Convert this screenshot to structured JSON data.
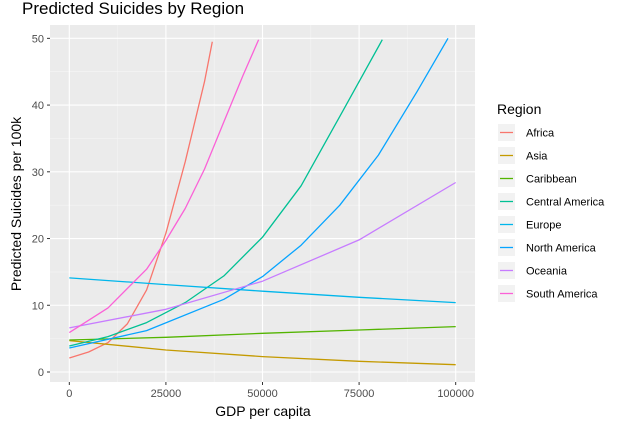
{
  "chart_data": {
    "type": "line",
    "title": "Predicted Suicides by Region",
    "xlabel": "GDP per capita",
    "ylabel": "Predicted Suicides per 100k",
    "xlim": [
      -5000,
      105000
    ],
    "ylim": [
      -1.5,
      52
    ],
    "x_ticks": [
      0,
      25000,
      50000,
      75000,
      100000
    ],
    "x_tick_labels": [
      "0",
      "25000",
      "50000",
      "75000",
      "100000"
    ],
    "y_ticks": [
      0,
      10,
      20,
      30,
      40,
      50
    ],
    "y_tick_labels": [
      "0",
      "10",
      "20",
      "30",
      "40",
      "50"
    ],
    "grid": true,
    "legend_title": "Region",
    "legend_position": "right",
    "series": [
      {
        "name": "Africa",
        "color": "#F8766D",
        "x": [
          0,
          5000,
          10000,
          15000,
          20000,
          25000,
          30000,
          35000,
          37000
        ],
        "y": [
          2.1,
          3.0,
          4.4,
          7.2,
          12.3,
          20.8,
          31.5,
          43.5,
          49.5
        ]
      },
      {
        "name": "Asia",
        "color": "#C49A00",
        "x": [
          0,
          25000,
          50000,
          75000,
          100000
        ],
        "y": [
          4.7,
          3.3,
          2.3,
          1.6,
          1.1
        ]
      },
      {
        "name": "Caribbean",
        "color": "#53B400",
        "x": [
          0,
          25000,
          50000,
          75000,
          100000
        ],
        "y": [
          4.8,
          5.2,
          5.8,
          6.3,
          6.8
        ]
      },
      {
        "name": "Central America",
        "color": "#00C094",
        "x": [
          0,
          10000,
          20000,
          30000,
          40000,
          50000,
          60000,
          70000,
          81000
        ],
        "y": [
          3.9,
          5.3,
          7.4,
          10.4,
          14.4,
          20.2,
          27.9,
          38.3,
          49.8
        ]
      },
      {
        "name": "Europe",
        "color": "#00B6EB",
        "x": [
          0,
          25000,
          50000,
          75000,
          100000
        ],
        "y": [
          14.1,
          13.1,
          12.1,
          11.2,
          10.4
        ]
      },
      {
        "name": "North America",
        "color": "#06A4FF",
        "x": [
          0,
          20000,
          40000,
          50000,
          60000,
          70000,
          80000,
          90000,
          98000
        ],
        "y": [
          3.6,
          6.2,
          10.9,
          14.3,
          19.0,
          25.0,
          32.5,
          42.0,
          50.0
        ]
      },
      {
        "name": "Oceania",
        "color": "#C77CFF",
        "x": [
          0,
          25000,
          50000,
          75000,
          100000
        ],
        "y": [
          6.6,
          9.4,
          13.6,
          19.8,
          28.4
        ]
      },
      {
        "name": "South America",
        "color": "#FB61D7",
        "x": [
          0,
          10000,
          20000,
          25000,
          30000,
          35000,
          40000,
          45000,
          49000
        ],
        "y": [
          5.9,
          9.6,
          15.4,
          19.7,
          24.5,
          30.4,
          37.5,
          44.5,
          49.8
        ]
      }
    ]
  }
}
